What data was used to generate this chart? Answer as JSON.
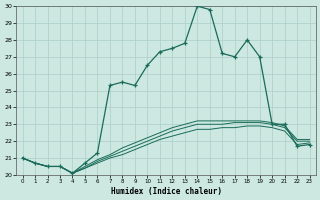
{
  "xlabel": "Humidex (Indice chaleur)",
  "background_color": "#cce8e0",
  "grid_color": "#aacfc8",
  "line_color": "#1a6b5a",
  "xlim": [
    -0.5,
    23.5
  ],
  "ylim": [
    20,
    30
  ],
  "yticks": [
    20,
    21,
    22,
    23,
    24,
    25,
    26,
    27,
    28,
    29,
    30
  ],
  "xticks": [
    0,
    1,
    2,
    3,
    4,
    5,
    6,
    7,
    8,
    9,
    10,
    11,
    12,
    13,
    14,
    15,
    16,
    17,
    18,
    19,
    20,
    21,
    22,
    23
  ],
  "x": [
    0,
    1,
    2,
    3,
    4,
    5,
    6,
    7,
    8,
    9,
    10,
    11,
    12,
    13,
    14,
    15,
    16,
    17,
    18,
    19,
    20,
    21,
    22,
    23
  ],
  "y_main": [
    21.0,
    20.7,
    20.5,
    20.5,
    20.1,
    20.7,
    21.3,
    25.3,
    25.5,
    25.3,
    26.5,
    27.3,
    27.5,
    27.8,
    30.0,
    29.8,
    27.2,
    27.0,
    28.0,
    27.0,
    23.0,
    23.0,
    21.7,
    21.8
  ],
  "y_base1": [
    21.0,
    20.7,
    20.5,
    20.5,
    20.1,
    20.4,
    20.7,
    21.0,
    21.2,
    21.5,
    21.8,
    22.1,
    22.3,
    22.5,
    22.7,
    22.7,
    22.8,
    22.8,
    22.9,
    22.9,
    22.8,
    22.6,
    21.8,
    21.9
  ],
  "y_base2": [
    21.0,
    20.7,
    20.5,
    20.5,
    20.1,
    20.4,
    20.8,
    21.1,
    21.4,
    21.7,
    22.0,
    22.3,
    22.6,
    22.8,
    23.0,
    23.0,
    23.0,
    23.1,
    23.1,
    23.1,
    23.0,
    22.8,
    22.0,
    22.0
  ],
  "y_base3": [
    21.0,
    20.7,
    20.5,
    20.5,
    20.1,
    20.5,
    20.9,
    21.2,
    21.6,
    21.9,
    22.2,
    22.5,
    22.8,
    23.0,
    23.2,
    23.2,
    23.2,
    23.2,
    23.2,
    23.2,
    23.1,
    22.9,
    22.1,
    22.1
  ]
}
